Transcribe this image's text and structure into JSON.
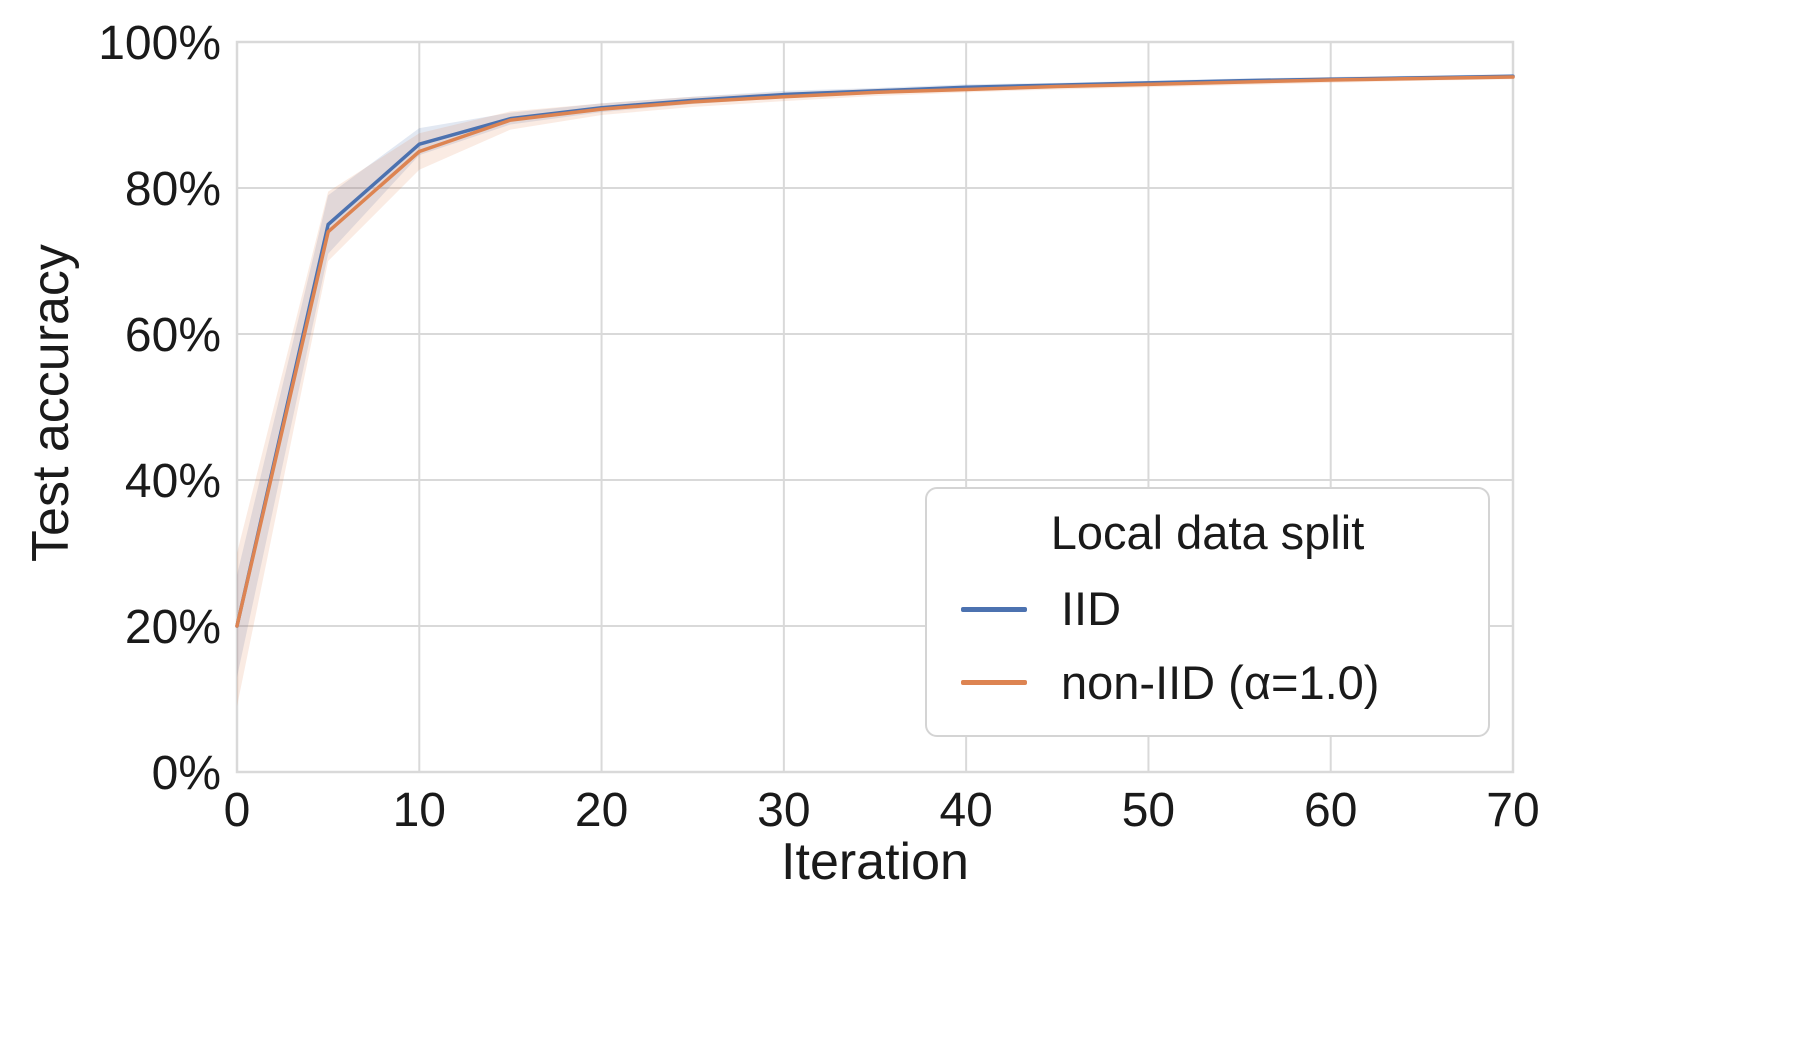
{
  "chart_data": {
    "type": "line",
    "title": "",
    "xlabel": "Iteration",
    "ylabel": "Test accuracy",
    "xlim": [
      0,
      70
    ],
    "ylim": [
      0,
      100
    ],
    "grid": true,
    "grid_color": "#d9d9d9",
    "text_color": "#1a1a1a",
    "xticks": {
      "values": [
        0,
        10,
        20,
        30,
        40,
        50,
        60,
        70
      ],
      "labels": [
        "0",
        "10",
        "20",
        "30",
        "40",
        "50",
        "60",
        "70"
      ]
    },
    "yticks": {
      "values": [
        0,
        20,
        40,
        60,
        80,
        100
      ],
      "labels": [
        "0%",
        "20%",
        "40%",
        "60%",
        "80%",
        "100%"
      ]
    },
    "legend": {
      "title": "Local data split",
      "position": "lower right"
    },
    "x": [
      0,
      5,
      10,
      15,
      20,
      25,
      30,
      35,
      40,
      45,
      50,
      55,
      60,
      65,
      70
    ],
    "series": [
      {
        "name": "IID",
        "color": "#4c72b0",
        "values": [
          20,
          75,
          86,
          89.5,
          91,
          92,
          92.8,
          93.3,
          93.8,
          94.1,
          94.4,
          94.7,
          94.9,
          95.1,
          95.3
        ],
        "lower": [
          13,
          71,
          84.5,
          88.7,
          90.4,
          91.5,
          92.3,
          92.9,
          93.4,
          93.8,
          94.1,
          94.4,
          94.6,
          94.8,
          95.0
        ],
        "upper": [
          27,
          79,
          88.2,
          90.3,
          91.6,
          92.5,
          93.3,
          93.7,
          94.2,
          94.4,
          94.7,
          95.0,
          95.2,
          95.4,
          95.6
        ]
      },
      {
        "name": "non-IID (α=1.0)",
        "color": "#dd8452",
        "values": [
          20,
          74,
          85,
          89.3,
          90.8,
          91.8,
          92.5,
          93.1,
          93.5,
          93.9,
          94.2,
          94.5,
          94.8,
          95.0,
          95.2
        ],
        "lower": [
          9,
          70,
          82.5,
          88.0,
          90.0,
          91.1,
          91.9,
          92.6,
          93.1,
          93.5,
          93.8,
          94.1,
          94.4,
          94.7,
          94.9
        ],
        "upper": [
          30,
          79.5,
          87.5,
          90.5,
          91.6,
          92.5,
          93.1,
          93.6,
          93.9,
          94.3,
          94.6,
          94.9,
          95.2,
          95.3,
          95.5
        ]
      }
    ]
  }
}
